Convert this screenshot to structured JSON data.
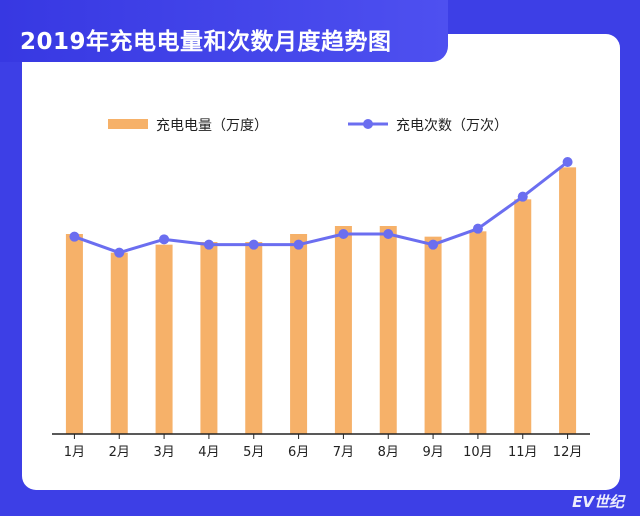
{
  "title": "2019年充电电量和次数月度趋势图",
  "logo_text": "EV世纪",
  "colors": {
    "background": "#3d3fe6",
    "bar": "#f6b169",
    "line": "#6b6ef0",
    "axis": "#222222"
  },
  "chart_data": {
    "type": "bar",
    "title": "2019年充电电量和次数月度趋势图",
    "categories": [
      "1月",
      "2月",
      "3月",
      "4月",
      "5月",
      "6月",
      "7月",
      "8月",
      "9月",
      "10月",
      "11月",
      "12月"
    ],
    "series": [
      {
        "name": "充电电量（万度）",
        "type": "bar",
        "values": [
          7.5,
          6.8,
          7.1,
          7.2,
          7.2,
          7.5,
          7.8,
          7.8,
          7.4,
          7.6,
          8.8,
          10.0
        ]
      },
      {
        "name": "充电次数（万次）",
        "type": "line",
        "values": [
          7.4,
          6.8,
          7.3,
          7.1,
          7.1,
          7.1,
          7.5,
          7.5,
          7.1,
          7.7,
          8.9,
          10.2
        ]
      }
    ],
    "ylim": [
      0,
      10.5
    ],
    "grid": false,
    "legend_position": "top-center",
    "xlabel": "",
    "ylabel": ""
  }
}
